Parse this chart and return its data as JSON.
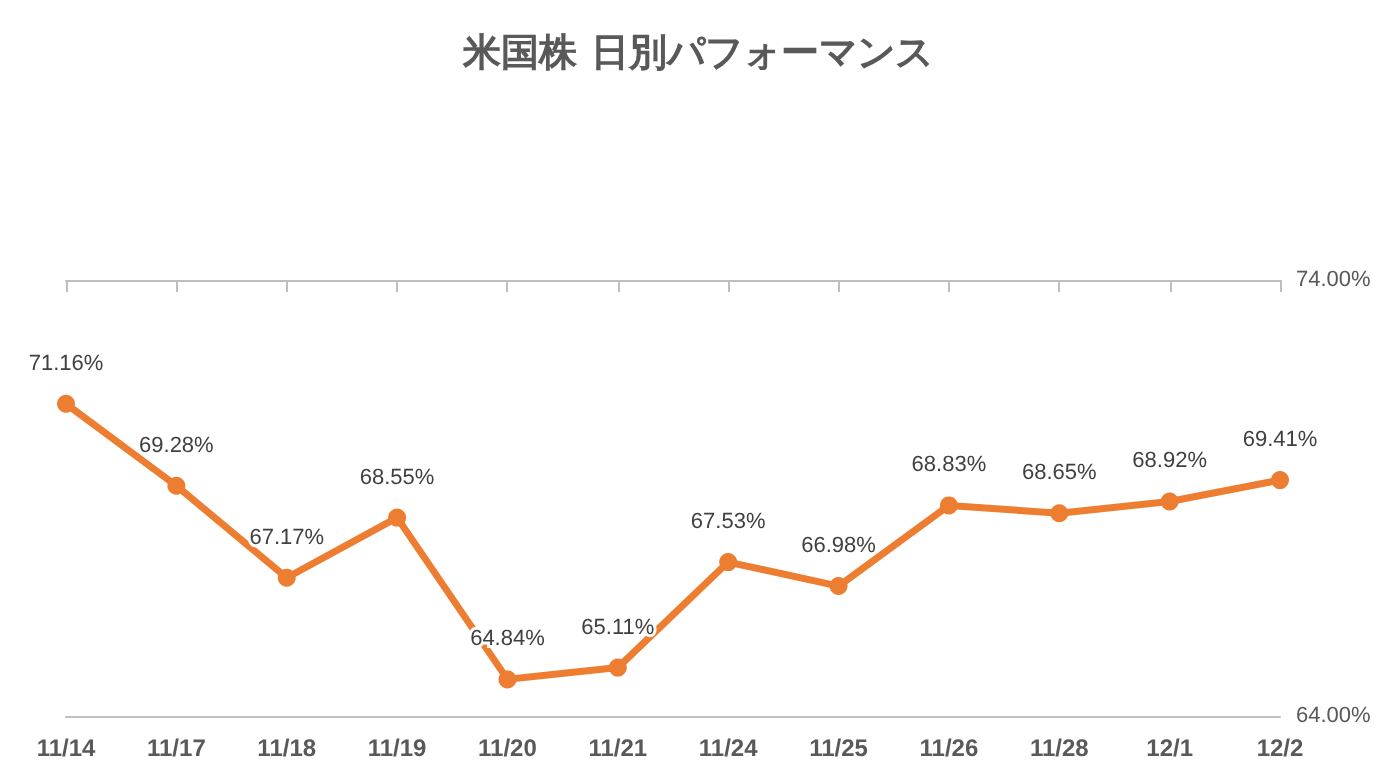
{
  "chart_data": {
    "type": "line",
    "title": "米国株 日別パフォーマンス",
    "categories": [
      "11/14",
      "11/17",
      "11/18",
      "11/19",
      "11/20",
      "11/21",
      "11/24",
      "11/25",
      "11/26",
      "11/28",
      "12/1",
      "12/2"
    ],
    "series": [
      {
        "color": "#ed7d31",
        "values": [
          71.16,
          69.28,
          67.17,
          68.55,
          64.84,
          65.11,
          67.53,
          66.98,
          68.83,
          68.65,
          68.92,
          69.41
        ],
        "value_labels": [
          "71.16%",
          "69.28%",
          "67.17%",
          "68.55%",
          "64.84%",
          "65.11%",
          "67.53%",
          "66.98%",
          "68.83%",
          "68.65%",
          "68.92%",
          "69.41%"
        ]
      }
    ],
    "ylim": [
      64,
      74
    ],
    "yticks": [
      {
        "value": 64,
        "label": "64.00%"
      },
      {
        "value": 74,
        "label": "74.00%"
      }
    ],
    "marker": "circle",
    "line_style": "solid"
  }
}
